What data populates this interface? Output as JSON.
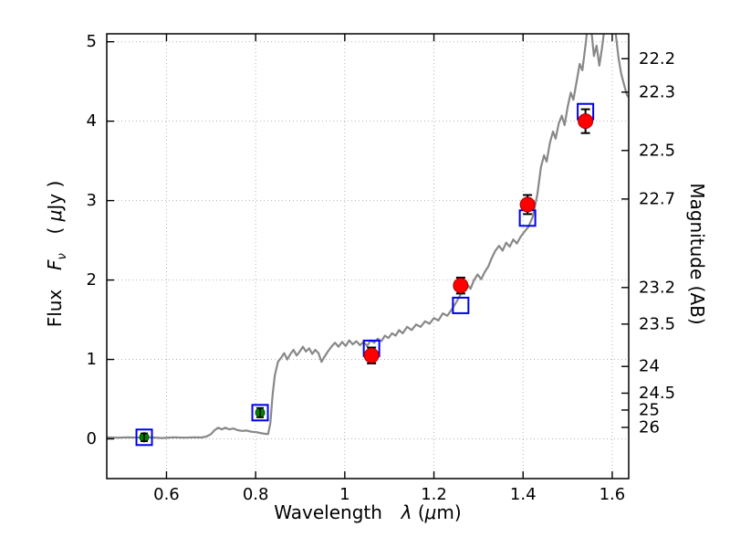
{
  "labels": {
    "xlabel_word": "Wavelength",
    "xlabel_symbol": "λ",
    "xlabel_open": "(",
    "xlabel_mu": "μ",
    "xlabel_close": "m)",
    "ylabel_word": "Flux",
    "ylabel_F": "F",
    "ylabel_nu": "ν",
    "ylabel_u1": "(",
    "ylabel_mu": "μ",
    "ylabel_u2": "Jy )",
    "ylabel_right": "Magnitude (AB)"
  },
  "chart_data": {
    "type": "line",
    "title": "",
    "xlabel": "Wavelength λ (μm)",
    "ylabel_left": "Flux Fν ( μJy )",
    "ylabel_right": "Magnitude (AB)",
    "xlim": [
      0.466,
      1.637
    ],
    "ylim": [
      -0.5,
      5.1
    ],
    "x_ticks": [
      0.6,
      0.8,
      1.0,
      1.2,
      1.4,
      1.6
    ],
    "x_tick_labels": [
      "0.6",
      "0.8",
      "1",
      "1.2",
      "1.4",
      "1.6"
    ],
    "y_ticks": [
      0,
      1,
      2,
      3,
      4,
      5
    ],
    "y_tick_labels": [
      "0",
      "1",
      "2",
      "3",
      "4",
      "5"
    ],
    "right_axis": {
      "label": "Magnitude (AB)",
      "tick_magnitudes": [
        22.2,
        22.3,
        22.5,
        22.7,
        23.2,
        23.5,
        24,
        24.5,
        25,
        26
      ],
      "tick_labels": [
        "22.2",
        "22.3",
        "22.5",
        "22.7",
        "23.2",
        "23.5",
        "24",
        "24.5",
        "25",
        "26"
      ],
      "ab_zeropoint_ujy": 23.9
    },
    "grid": {
      "on": true,
      "style": "dotted",
      "color": "#b3b3b3"
    },
    "series": [
      {
        "name": "model-spectrum",
        "type": "line",
        "color": "#888888",
        "line_width": 2.2,
        "points": [
          [
            0.466,
            0.02
          ],
          [
            0.49,
            0.015
          ],
          [
            0.515,
            0.02
          ],
          [
            0.54,
            0.015
          ],
          [
            0.565,
            0.02
          ],
          [
            0.59,
            0.01
          ],
          [
            0.615,
            0.02
          ],
          [
            0.64,
            0.015
          ],
          [
            0.662,
            0.02
          ],
          [
            0.678,
            0.018
          ],
          [
            0.69,
            0.03
          ],
          [
            0.7,
            0.06
          ],
          [
            0.708,
            0.11
          ],
          [
            0.716,
            0.14
          ],
          [
            0.724,
            0.12
          ],
          [
            0.732,
            0.14
          ],
          [
            0.741,
            0.12
          ],
          [
            0.75,
            0.13
          ],
          [
            0.76,
            0.11
          ],
          [
            0.77,
            0.1
          ],
          [
            0.78,
            0.105
          ],
          [
            0.79,
            0.09
          ],
          [
            0.8,
            0.085
          ],
          [
            0.81,
            0.075
          ],
          [
            0.82,
            0.065
          ],
          [
            0.828,
            0.06
          ],
          [
            0.833,
            0.2
          ],
          [
            0.838,
            0.55
          ],
          [
            0.843,
            0.8
          ],
          [
            0.85,
            0.97
          ],
          [
            0.857,
            1.02
          ],
          [
            0.864,
            1.08
          ],
          [
            0.871,
            1.0
          ],
          [
            0.878,
            1.07
          ],
          [
            0.885,
            1.12
          ],
          [
            0.892,
            1.05
          ],
          [
            0.899,
            1.1
          ],
          [
            0.906,
            1.16
          ],
          [
            0.913,
            1.1
          ],
          [
            0.92,
            1.14
          ],
          [
            0.927,
            1.07
          ],
          [
            0.934,
            1.12
          ],
          [
            0.941,
            1.08
          ],
          [
            0.948,
            0.97
          ],
          [
            0.955,
            1.04
          ],
          [
            0.962,
            1.1
          ],
          [
            0.97,
            1.16
          ],
          [
            0.978,
            1.21
          ],
          [
            0.986,
            1.16
          ],
          [
            0.994,
            1.22
          ],
          [
            1.002,
            1.17
          ],
          [
            1.01,
            1.24
          ],
          [
            1.018,
            1.19
          ],
          [
            1.026,
            1.23
          ],
          [
            1.034,
            1.18
          ],
          [
            1.042,
            1.22
          ],
          [
            1.05,
            1.17
          ],
          [
            1.058,
            1.24
          ],
          [
            1.066,
            1.21
          ],
          [
            1.074,
            1.26
          ],
          [
            1.082,
            1.23
          ],
          [
            1.09,
            1.3
          ],
          [
            1.098,
            1.27
          ],
          [
            1.106,
            1.33
          ],
          [
            1.114,
            1.3
          ],
          [
            1.122,
            1.37
          ],
          [
            1.13,
            1.33
          ],
          [
            1.14,
            1.41
          ],
          [
            1.15,
            1.37
          ],
          [
            1.16,
            1.44
          ],
          [
            1.17,
            1.41
          ],
          [
            1.18,
            1.48
          ],
          [
            1.19,
            1.45
          ],
          [
            1.2,
            1.52
          ],
          [
            1.21,
            1.49
          ],
          [
            1.22,
            1.58
          ],
          [
            1.23,
            1.55
          ],
          [
            1.24,
            1.63
          ],
          [
            1.25,
            1.72
          ],
          [
            1.258,
            1.8
          ],
          [
            1.266,
            1.88
          ],
          [
            1.274,
            1.95
          ],
          [
            1.282,
            1.89
          ],
          [
            1.29,
            2.0
          ],
          [
            1.298,
            2.07
          ],
          [
            1.306,
            2.01
          ],
          [
            1.314,
            2.1
          ],
          [
            1.322,
            2.17
          ],
          [
            1.33,
            2.28
          ],
          [
            1.338,
            2.37
          ],
          [
            1.346,
            2.43
          ],
          [
            1.354,
            2.37
          ],
          [
            1.362,
            2.47
          ],
          [
            1.37,
            2.42
          ],
          [
            1.378,
            2.51
          ],
          [
            1.386,
            2.46
          ],
          [
            1.394,
            2.54
          ],
          [
            1.402,
            2.6
          ],
          [
            1.412,
            2.67
          ],
          [
            1.422,
            2.8
          ],
          [
            1.432,
            3.08
          ],
          [
            1.44,
            3.42
          ],
          [
            1.447,
            3.57
          ],
          [
            1.453,
            3.49
          ],
          [
            1.46,
            3.72
          ],
          [
            1.467,
            3.87
          ],
          [
            1.473,
            3.78
          ],
          [
            1.48,
            3.97
          ],
          [
            1.487,
            4.07
          ],
          [
            1.493,
            3.95
          ],
          [
            1.5,
            4.18
          ],
          [
            1.507,
            4.36
          ],
          [
            1.513,
            4.27
          ],
          [
            1.52,
            4.49
          ],
          [
            1.527,
            4.72
          ],
          [
            1.533,
            4.64
          ],
          [
            1.54,
            4.95
          ],
          [
            1.547,
            5.3
          ],
          [
            1.553,
            5.15
          ],
          [
            1.559,
            4.82
          ],
          [
            1.565,
            4.95
          ],
          [
            1.571,
            4.7
          ],
          [
            1.577,
            4.92
          ],
          [
            1.583,
            5.18
          ],
          [
            1.59,
            5.4
          ],
          [
            1.6,
            5.45
          ],
          [
            1.608,
            5.1
          ],
          [
            1.614,
            4.8
          ],
          [
            1.62,
            4.6
          ],
          [
            1.627,
            4.45
          ],
          [
            1.633,
            4.33
          ],
          [
            1.637,
            4.3
          ]
        ]
      },
      {
        "name": "model-photometry",
        "type": "scatter",
        "marker": "open-square",
        "color": "#0000ee",
        "size": 17,
        "x": [
          0.55,
          0.81,
          1.06,
          1.26,
          1.41,
          1.54
        ],
        "y": [
          0.02,
          0.33,
          1.14,
          1.68,
          2.78,
          4.12
        ]
      },
      {
        "name": "observed-photometry-ir",
        "type": "scatter",
        "marker": "filled-circle",
        "color": "#ff0000",
        "edge_color": "#aa0000",
        "error_color": "#000000",
        "size": 16,
        "x": [
          1.06,
          1.26,
          1.41,
          1.54
        ],
        "y": [
          1.05,
          1.93,
          2.95,
          4.0
        ],
        "yerr": [
          0.1,
          0.1,
          0.12,
          0.15
        ]
      },
      {
        "name": "observed-photometry-optical",
        "type": "scatter",
        "marker": "filled-circle",
        "color": "#008000",
        "edge_color": "#005500",
        "error_color": "#000000",
        "size": 10,
        "x": [
          0.55,
          0.81
        ],
        "y": [
          0.02,
          0.33
        ],
        "yerr": [
          0.05,
          0.06
        ]
      }
    ]
  }
}
